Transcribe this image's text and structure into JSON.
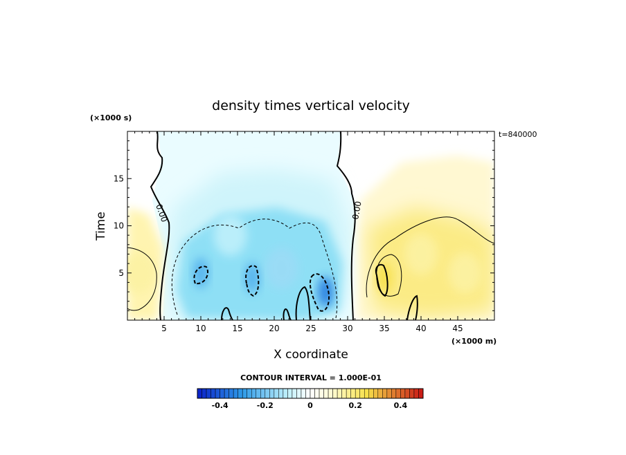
{
  "chart_data": {
    "type": "heatmap",
    "title": "density times vertical velocity",
    "xlabel": "X coordinate",
    "ylabel": "Time",
    "x_unit": "(×1000 m)",
    "y_unit": "(×1000 s)",
    "time_stamp": "t=840000",
    "xlim": [
      0,
      50
    ],
    "ylim": [
      0,
      20
    ],
    "x_ticks": [
      5,
      10,
      15,
      20,
      25,
      30,
      35,
      40,
      45
    ],
    "y_ticks": [
      5,
      10,
      15
    ],
    "contour_label": "0.00",
    "contour_interval_text": "CONTOUR INTERVAL = 1.000E-01",
    "colorbar": {
      "min": -0.5,
      "max": 0.5,
      "ticks": [
        "-0.4",
        "-0.2",
        "0",
        "0.2",
        "0.4"
      ],
      "tick_values": [
        -0.4,
        -0.2,
        0,
        0.2,
        0.4
      ],
      "colors": {
        "neg_strong": "#0a1fc8",
        "neg_mid": "#2f9be8",
        "neg_light": "#bff0fb",
        "zero": "#ffffff",
        "pos_light": "#fffbd0",
        "pos_mid": "#f7e04a",
        "pos_strong": "#c81414"
      }
    },
    "features": [
      {
        "x": 27,
        "y": 3,
        "value": -0.35
      },
      {
        "x": 10,
        "y": 5,
        "value": -0.25
      },
      {
        "x": 17,
        "y": 4.5,
        "value": -0.25
      },
      {
        "x": 21,
        "y": 5.5,
        "value": -0.15
      },
      {
        "x": 14,
        "y": 9,
        "value": -0.1
      },
      {
        "x": 35,
        "y": 4.5,
        "value": 0.25
      },
      {
        "x": 40,
        "y": 7,
        "value": 0.15
      },
      {
        "x": 46,
        "y": 5,
        "value": 0.15
      },
      {
        "x": 1.5,
        "y": 5,
        "value": 0.15
      }
    ]
  }
}
